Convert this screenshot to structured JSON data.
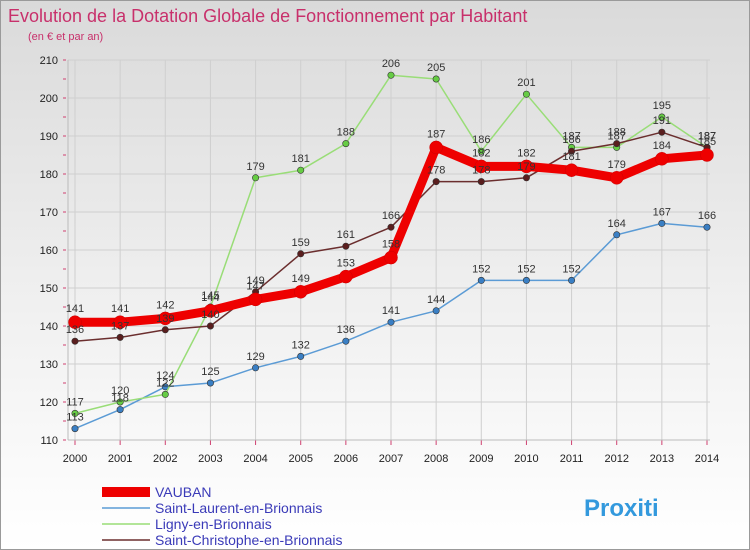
{
  "chart_data": {
    "type": "line",
    "title": "Evolution de la Dotation Globale de Fonctionnement par Habitant",
    "subtitle": "(en € et par an)",
    "x": [
      "2000",
      "2001",
      "2002",
      "2003",
      "2004",
      "2005",
      "2006",
      "2007",
      "2008",
      "2009",
      "2010",
      "2011",
      "2012",
      "2013",
      "2014"
    ],
    "ylim": [
      110,
      210
    ],
    "yticks": [
      "110",
      "120",
      "130",
      "140",
      "150",
      "160",
      "170",
      "180",
      "190",
      "200",
      "210"
    ],
    "grid": true,
    "legend_position": "bottom-left",
    "series": [
      {
        "name": "Saint-Laurent-en-Brionnais",
        "color": "#5b9bd5",
        "dot": "#3a7fc4",
        "values": [
          113,
          118,
          124,
          125,
          129,
          132,
          136,
          141,
          144,
          152,
          152,
          152,
          164,
          167,
          166
        ]
      },
      {
        "name": "Ligny-en-Brionnais",
        "color": "#99dd77",
        "dot": "#66cc44",
        "values": [
          117,
          120,
          122,
          145,
          179,
          181,
          188,
          206,
          205,
          186,
          201,
          187,
          187,
          195,
          187
        ]
      },
      {
        "name": "Saint-Christophe-en-Brionnais",
        "color": "#6b2e2e",
        "dot": "#5a1e1e",
        "values": [
          136,
          137,
          139,
          140,
          149,
          159,
          161,
          166,
          178,
          178,
          179,
          186,
          188,
          191,
          187
        ]
      },
      {
        "name": "VAUBAN",
        "color": "#ee0000",
        "dot": "#ee0000",
        "values": [
          141,
          141,
          142,
          144,
          147,
          149,
          153,
          158,
          187,
          182,
          182,
          181,
          179,
          184,
          185
        ]
      }
    ],
    "legend": [
      "VAUBAN",
      "Saint-Laurent-en-Brionnais",
      "Ligny-en-Brionnais",
      "Saint-Christophe-en-Brionnais"
    ]
  },
  "colors": {
    "title": "#c8306b",
    "legend_text": "#3a3ab8",
    "grid": "#cfcfcf",
    "tick_mark": "#d04070",
    "vauban": "#ee0000",
    "laurent": "#5b9bd5",
    "ligny": "#99dd77",
    "christophe": "#6b2e2e"
  },
  "brand": {
    "text": "Proxiti"
  }
}
